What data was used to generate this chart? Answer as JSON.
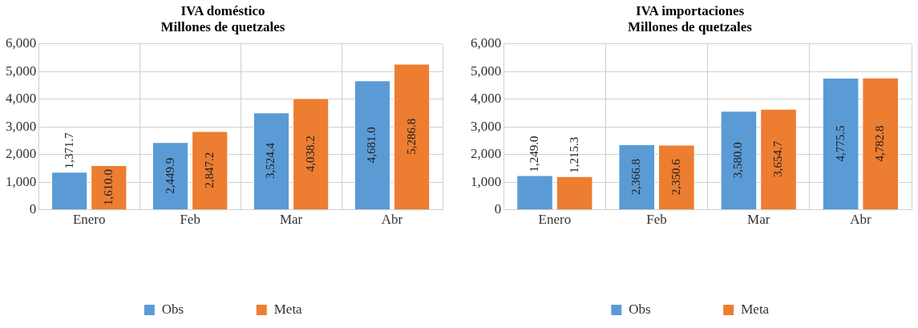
{
  "chart_data": [
    {
      "type": "bar",
      "title": "IVA doméstico\nMillones de quetzales",
      "categories": [
        "Enero",
        "Feb",
        "Mar",
        "Abr"
      ],
      "series": [
        {
          "name": "Obs",
          "color": "#5b9bd5",
          "values": [
            1371.7,
            2449.9,
            3524.4,
            4681.0
          ],
          "value_labels": [
            "1,371.7",
            "2,449.9",
            "3,524.4",
            "4,681.0"
          ]
        },
        {
          "name": "Meta",
          "color": "#ed7d31",
          "values": [
            1610.0,
            2847.2,
            4038.2,
            5286.8
          ],
          "value_labels": [
            "1,610.0",
            "2,847.2",
            "4,038.2",
            "5,286.8"
          ]
        }
      ],
      "ylim": [
        0,
        6000
      ],
      "yticks": [
        0,
        {
          "value": 1000,
          "label": "1,000"
        },
        {
          "value": 2000,
          "label": "2,000"
        },
        {
          "value": 3000,
          "label": "3,000"
        },
        {
          "value": 4000,
          "label": "4,000"
        },
        {
          "value": 5000,
          "label": "5,000"
        },
        {
          "value": 6000,
          "label": "6,000"
        }
      ],
      "grid": true,
      "legend": "bottom"
    },
    {
      "type": "bar",
      "title": "IVA importaciones\nMillones de quetzales",
      "categories": [
        "Enero",
        "Feb",
        "Mar",
        "Abr"
      ],
      "series": [
        {
          "name": "Obs",
          "color": "#5b9bd5",
          "values": [
            1249.0,
            2366.8,
            3580.0,
            4775.5
          ],
          "value_labels": [
            "1,249.0",
            "2,366.8",
            "3,580.0",
            "4,775.5"
          ]
        },
        {
          "name": "Meta",
          "color": "#ed7d31",
          "values": [
            1215.3,
            2350.6,
            3654.7,
            4782.8
          ],
          "value_labels": [
            "1,215.3",
            "2,350.6",
            "3,654.7",
            "4,782.8"
          ]
        }
      ],
      "ylim": [
        0,
        6000
      ],
      "yticks": [
        0,
        {
          "value": 1000,
          "label": "1,000"
        },
        {
          "value": 2000,
          "label": "2,000"
        },
        {
          "value": 3000,
          "label": "3,000"
        },
        {
          "value": 4000,
          "label": "4,000"
        },
        {
          "value": 5000,
          "label": "5,000"
        },
        {
          "value": 6000,
          "label": "6,000"
        }
      ],
      "grid": true,
      "legend": "bottom"
    }
  ]
}
